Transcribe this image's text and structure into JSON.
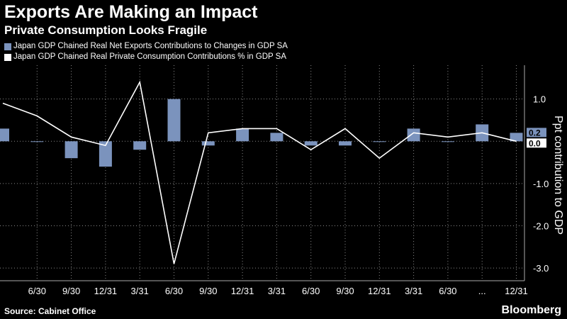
{
  "header": {
    "title": "Exports Are Making an Impact",
    "subtitle": "Private Consumption Looks Fragile"
  },
  "footer": {
    "source": "Source: Cabinet Office",
    "brand": "Bloomberg"
  },
  "colors": {
    "bar": "#7b93bd",
    "line": "#ffffff",
    "background": "#000000"
  },
  "chart_data": {
    "type": "bar",
    "title": "Exports Are Making an Impact",
    "subtitle": "Private Consumption Looks Fragile",
    "ylabel": "Ppt contribution to GDP",
    "ylim": [
      -3.3,
      1.8
    ],
    "yticks": [
      1.0,
      0.0,
      -1.0,
      -2.0,
      -3.0
    ],
    "ytick_labels": [
      "1.0",
      "0.0",
      "-1.0",
      "-2.0",
      "-3.0"
    ],
    "grid": true,
    "legend_position": "top-left",
    "x_tick_labels": [
      "6/30",
      "9/30",
      "12/31",
      "3/31",
      "6/30",
      "9/30",
      "12/31",
      "3/31",
      "6/30",
      "9/30",
      "12/31",
      "3/31",
      "6/30",
      "...",
      "12/31"
    ],
    "series": [
      {
        "name": "Japan GDP Chained Real Net Exports Contributions to Changes in GDP SA",
        "type": "bar",
        "values": [
          0.3,
          0.0,
          -0.4,
          -0.6,
          -0.2,
          1.0,
          -0.1,
          0.3,
          0.2,
          -0.1,
          -0.1,
          0.0,
          0.3,
          0.0,
          0.4,
          0.2
        ]
      },
      {
        "name": "Japan GDP Chained Real Private Consumption Contributions % in GDP SA",
        "type": "line",
        "values": [
          0.9,
          0.6,
          0.1,
          -0.1,
          1.4,
          -2.9,
          0.2,
          0.3,
          0.3,
          -0.2,
          0.3,
          -0.4,
          0.2,
          0.1,
          0.2,
          0.0
        ]
      }
    ],
    "end_labels": [
      "0.2",
      "0.0"
    ]
  }
}
